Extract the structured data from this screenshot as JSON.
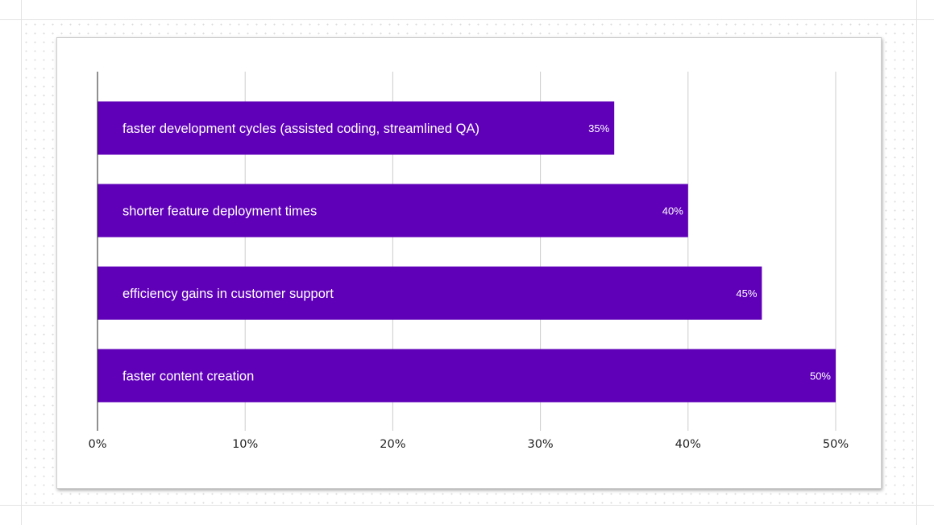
{
  "chart_data": {
    "type": "bar",
    "orientation": "horizontal",
    "categories": [
      "faster development cycles (assisted coding, streamlined QA)",
      "shorter feature deployment times",
      "efficiency gains in customer support",
      "faster content creation"
    ],
    "values": [
      35,
      40,
      45,
      50
    ],
    "value_labels": [
      "35%",
      "40%",
      "45%",
      "50%"
    ],
    "x_ticks": [
      "0%",
      "10%",
      "20%",
      "30%",
      "40%",
      "50%"
    ],
    "xlim": [
      0,
      50
    ],
    "grid": true,
    "bar_color": "#5f00b8",
    "title": "",
    "xlabel": "",
    "ylabel": ""
  }
}
